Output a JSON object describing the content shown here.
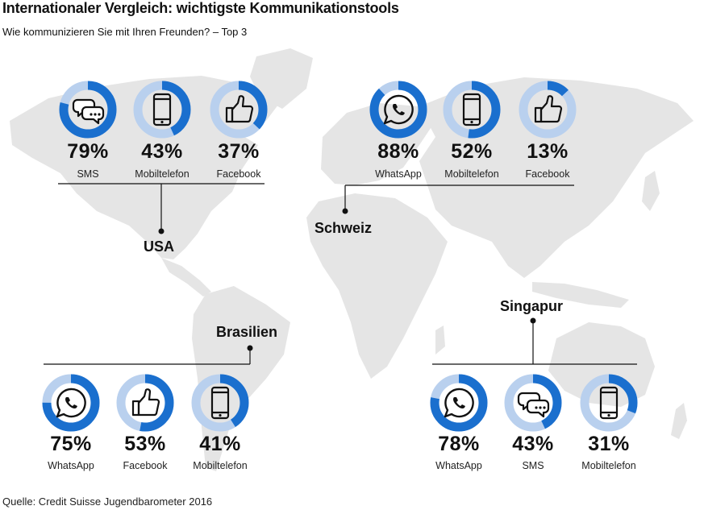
{
  "title": "Internationaler Vergleich: wichtigste Kommunikationstools",
  "subtitle": "Wie kommunizieren Sie mit Ihren Freunden? – Top 3",
  "source": "Quelle: Credit Suisse Jugendbarometer 2016",
  "colors": {
    "accent": "#1a6fce",
    "light": "#b9d0ee",
    "map": "#e5e5e5",
    "line": "#111111"
  },
  "chart_data": {
    "type": "donut-panel",
    "groups": [
      {
        "country": "USA",
        "items": [
          {
            "label": "SMS",
            "value": 79,
            "display": "79%",
            "icon": "chat-bubbles-icon"
          },
          {
            "label": "Mobiltelefon",
            "value": 43,
            "display": "43%",
            "icon": "mobile-phone-icon"
          },
          {
            "label": "Facebook",
            "value": 37,
            "display": "37%",
            "icon": "thumbs-up-icon"
          }
        ]
      },
      {
        "country": "Schweiz",
        "items": [
          {
            "label": "WhatsApp",
            "value": 88,
            "display": "88%",
            "icon": "whatsapp-icon"
          },
          {
            "label": "Mobiltelefon",
            "value": 52,
            "display": "52%",
            "icon": "mobile-phone-icon"
          },
          {
            "label": "Facebook",
            "value": 13,
            "display": "13%",
            "icon": "thumbs-up-icon"
          }
        ]
      },
      {
        "country": "Brasilien",
        "items": [
          {
            "label": "WhatsApp",
            "value": 75,
            "display": "75%",
            "icon": "whatsapp-icon"
          },
          {
            "label": "Facebook",
            "value": 53,
            "display": "53%",
            "icon": "thumbs-up-icon"
          },
          {
            "label": "Mobiltelefon",
            "value": 41,
            "display": "41%",
            "icon": "mobile-phone-icon"
          }
        ]
      },
      {
        "country": "Singapur",
        "items": [
          {
            "label": "WhatsApp",
            "value": 78,
            "display": "78%",
            "icon": "whatsapp-icon"
          },
          {
            "label": "SMS",
            "value": 43,
            "display": "43%",
            "icon": "chat-bubbles-icon"
          },
          {
            "label": "Mobiltelefon",
            "value": 31,
            "display": "31%",
            "icon": "mobile-phone-icon"
          }
        ]
      }
    ]
  }
}
